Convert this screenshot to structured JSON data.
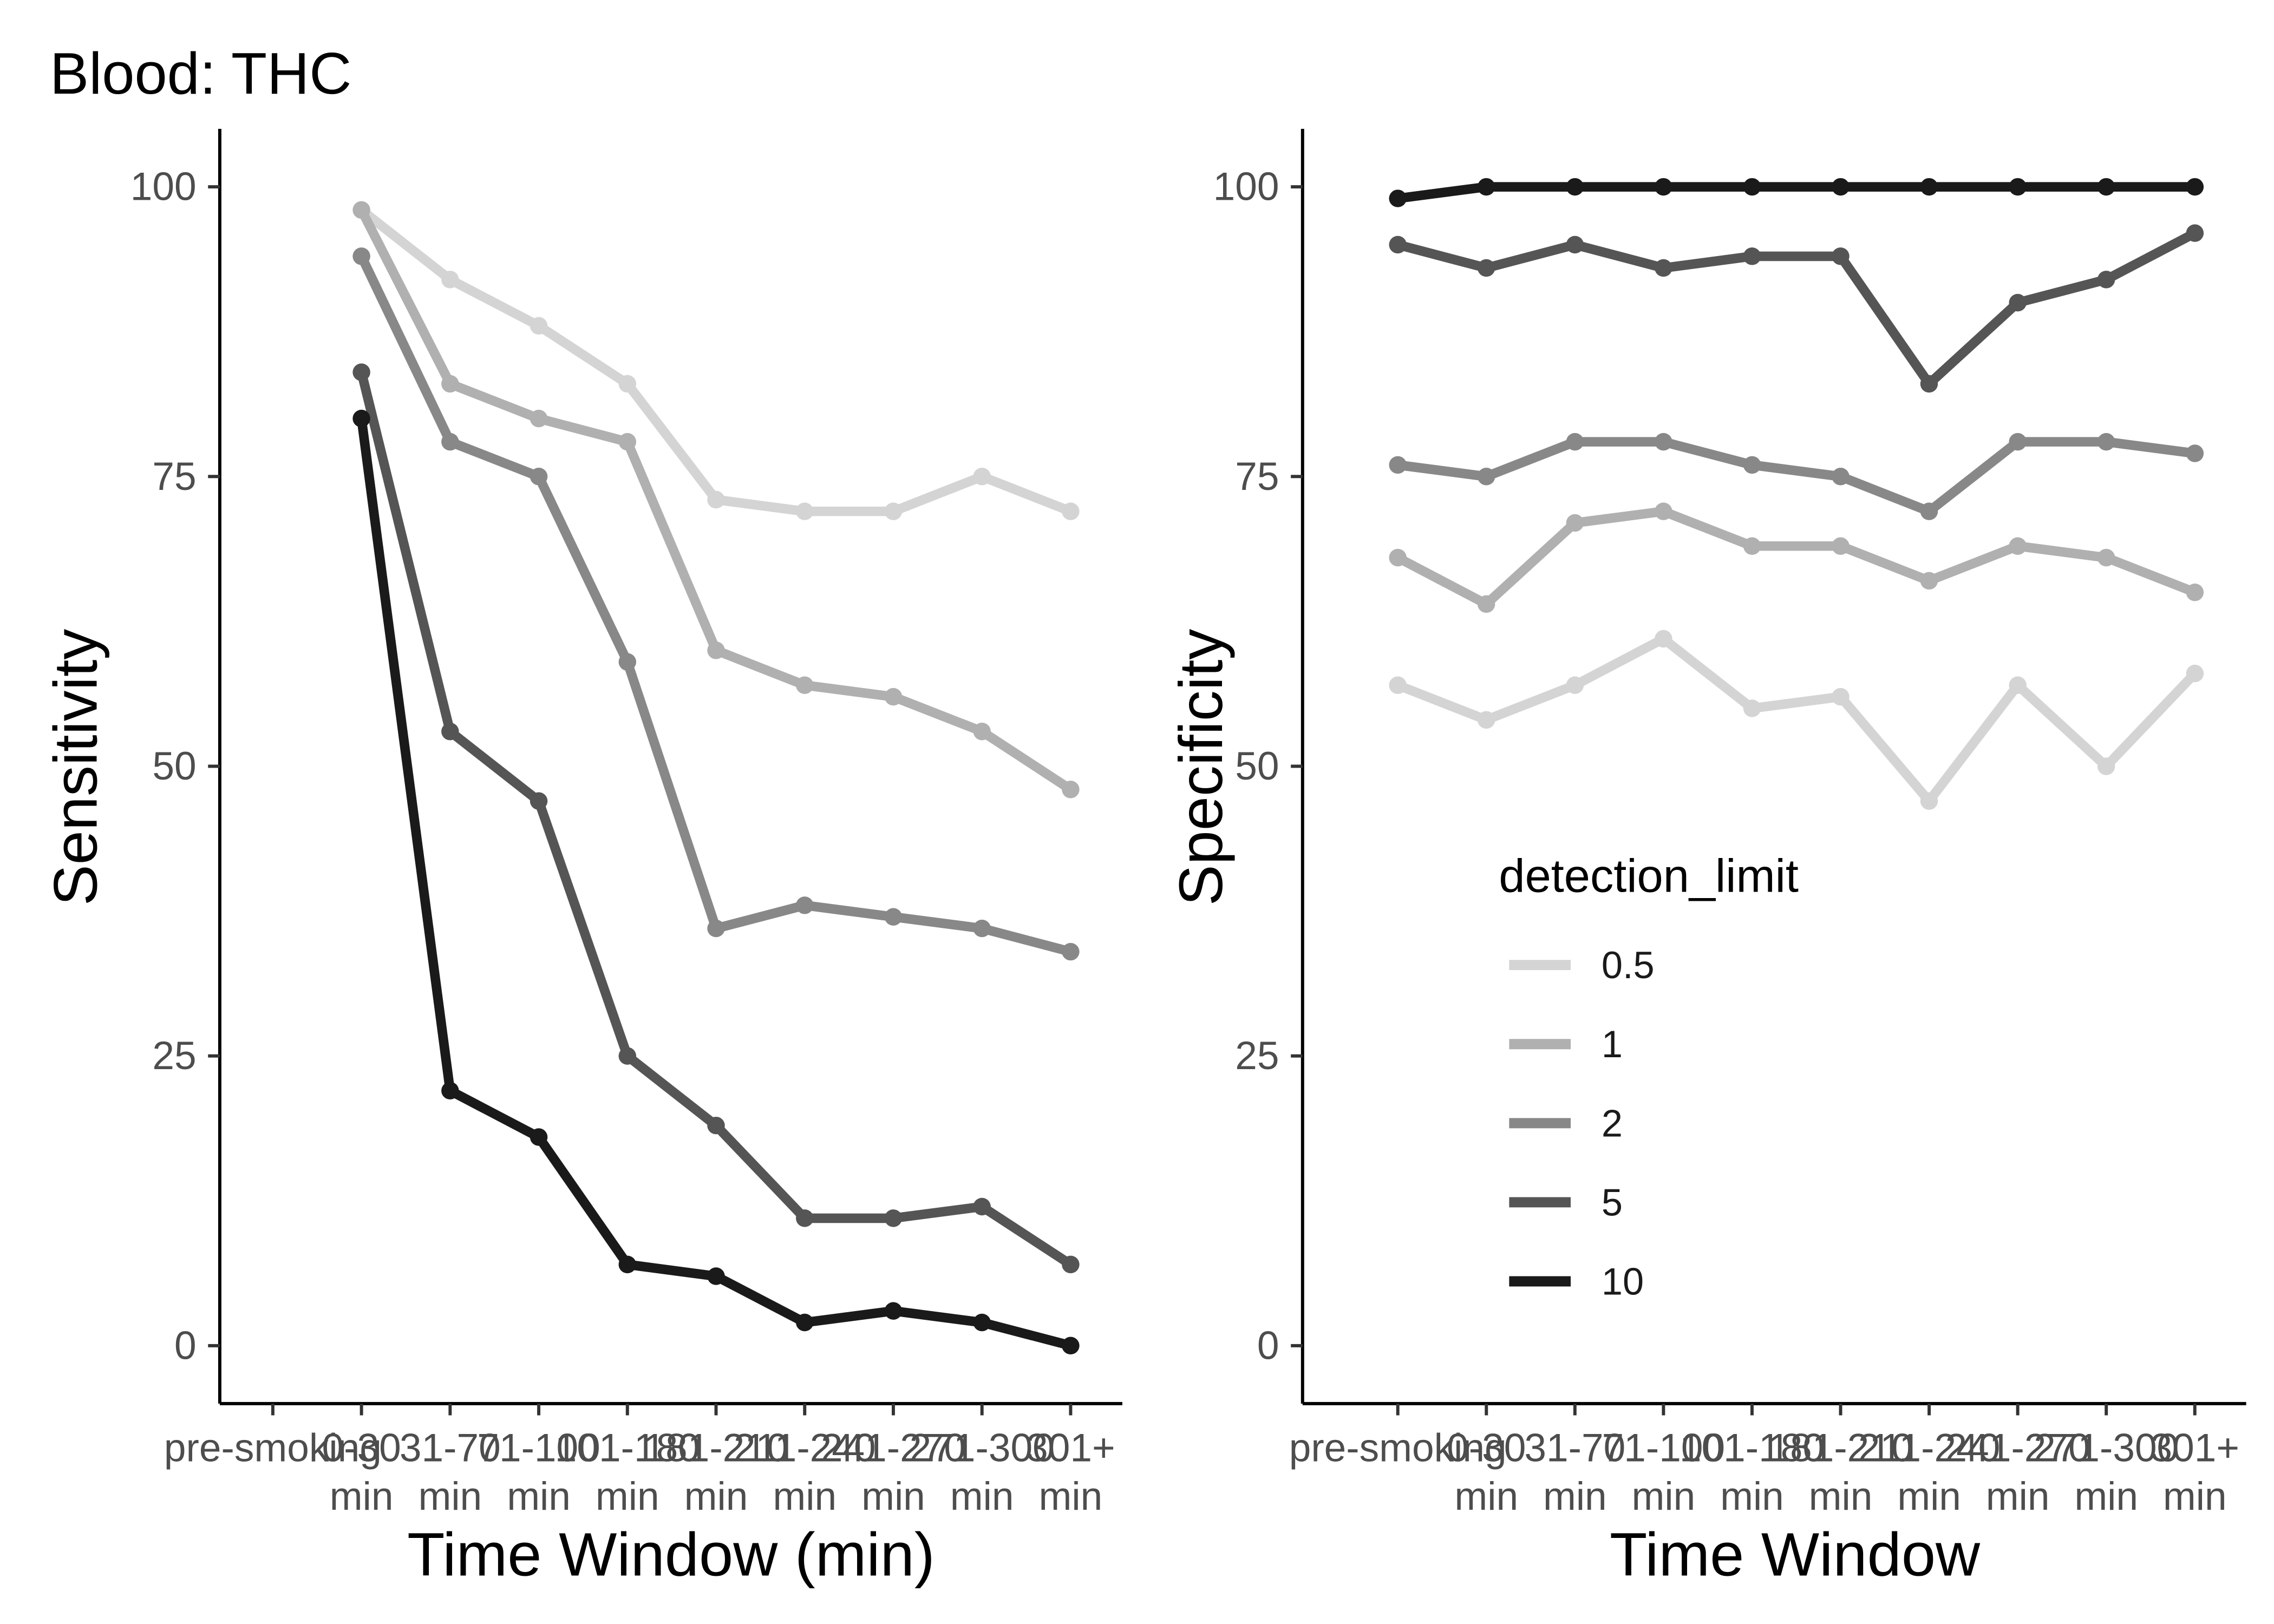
{
  "chart_data": [
    {
      "type": "line",
      "title": "Blood: THC",
      "xlabel": "Time Window (min)",
      "ylabel": "Sensitivity",
      "ylim": [
        -5,
        105
      ],
      "yticks": [
        0,
        25,
        50,
        75,
        100
      ],
      "grid": false,
      "categories": [
        [
          "pre-smoking"
        ],
        [
          "0-30",
          "min"
        ],
        [
          "31-70",
          "min"
        ],
        [
          "71-100",
          "min"
        ],
        [
          "101-180",
          "min"
        ],
        [
          "181-210",
          "min"
        ],
        [
          "211-240",
          "min"
        ],
        [
          "241-270",
          "min"
        ],
        [
          "271-300",
          "min"
        ],
        [
          "301+",
          "min"
        ]
      ],
      "series": [
        {
          "name": "0.5",
          "color": "#d4d4d4",
          "values": [
            null,
            98,
            92,
            88,
            83,
            73,
            72,
            72,
            75,
            72
          ]
        },
        {
          "name": "1",
          "color": "#b0b0b0",
          "values": [
            null,
            98,
            83,
            80,
            78,
            60,
            57,
            56,
            53,
            48
          ]
        },
        {
          "name": "2",
          "color": "#888888",
          "values": [
            null,
            94,
            78,
            75,
            59,
            36,
            38,
            37,
            36,
            34
          ]
        },
        {
          "name": "5",
          "color": "#555555",
          "values": [
            null,
            84,
            53,
            47,
            25,
            19,
            11,
            11,
            12,
            7
          ]
        },
        {
          "name": "10",
          "color": "#1a1a1a",
          "values": [
            null,
            80,
            22,
            18,
            7,
            6,
            2,
            3,
            2,
            0
          ]
        }
      ]
    },
    {
      "type": "line",
      "xlabel": "Time Window",
      "ylabel": "Specificity",
      "ylim": [
        -5,
        105
      ],
      "yticks": [
        0,
        25,
        50,
        75,
        100
      ],
      "grid": false,
      "categories": [
        [
          "pre-smoking"
        ],
        [
          "0-30",
          "min"
        ],
        [
          "31-70",
          "min"
        ],
        [
          "71-100",
          "min"
        ],
        [
          "101-180",
          "min"
        ],
        [
          "181-210",
          "min"
        ],
        [
          "211-240",
          "min"
        ],
        [
          "241-270",
          "min"
        ],
        [
          "271-300",
          "min"
        ],
        [
          "301+",
          "min"
        ]
      ],
      "series": [
        {
          "name": "0.5",
          "color": "#d4d4d4",
          "values": [
            57,
            54,
            57,
            61,
            55,
            56,
            47,
            57,
            50,
            58
          ]
        },
        {
          "name": "1",
          "color": "#b0b0b0",
          "values": [
            68,
            64,
            71,
            72,
            69,
            69,
            66,
            69,
            68,
            65
          ]
        },
        {
          "name": "2",
          "color": "#888888",
          "values": [
            76,
            75,
            78,
            78,
            76,
            75,
            72,
            78,
            78,
            77
          ]
        },
        {
          "name": "5",
          "color": "#555555",
          "values": [
            95,
            93,
            95,
            93,
            94,
            94,
            83,
            90,
            92,
            96
          ]
        },
        {
          "name": "10",
          "color": "#1a1a1a",
          "values": [
            99,
            100,
            100,
            100,
            100,
            100,
            100,
            100,
            100,
            100
          ]
        }
      ],
      "legend": {
        "title": "detection_limit",
        "position": "inside-lower-left"
      }
    }
  ]
}
